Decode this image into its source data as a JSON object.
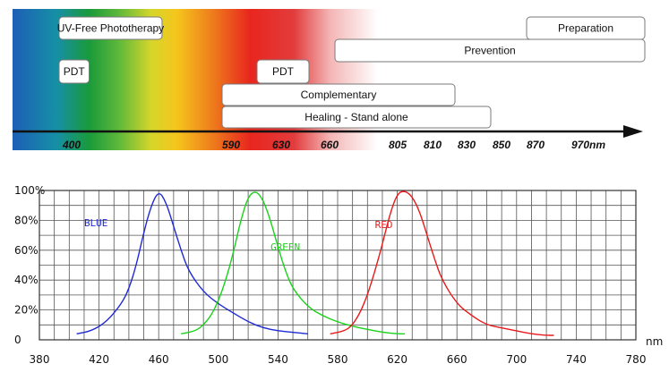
{
  "spectrum_diagram": {
    "wavelength_ticks": [
      "400",
      "590",
      "630",
      "660",
      "805",
      "810",
      "830",
      "850",
      "870",
      "970nm"
    ],
    "bands": [
      {
        "label": "UV-Free Phototherapy",
        "from": 400,
        "to": 520
      },
      {
        "label": "PDT",
        "from": 400,
        "to": 435
      },
      {
        "label": "PDT",
        "from": 630,
        "to": 658
      },
      {
        "label": "Preparation",
        "from": 870,
        "to": 980
      },
      {
        "label": "Prevention",
        "from": 690,
        "to": 980
      },
      {
        "label": "Complementary",
        "from": 590,
        "to": 830
      },
      {
        "label": "Healing - Stand alone",
        "from": 590,
        "to": 850
      }
    ]
  },
  "chart_data": {
    "type": "line",
    "title": "",
    "xlabel": "nm",
    "ylabel": "",
    "xlim": [
      380,
      780
    ],
    "ylim": [
      0,
      100
    ],
    "x_ticks": [
      380,
      420,
      460,
      500,
      540,
      580,
      620,
      660,
      700,
      740,
      780
    ],
    "y_ticks": [
      0,
      20,
      40,
      60,
      80,
      100
    ],
    "y_tick_labels": [
      "0",
      "20%",
      "40%",
      "60%",
      "80%",
      "100%"
    ],
    "grid": true,
    "series": [
      {
        "name": "BLUE",
        "color": "#1f2ad4",
        "x": [
          405,
          415,
          425,
          435,
          440,
          445,
          450,
          455,
          460,
          465,
          470,
          475,
          480,
          490,
          500,
          510,
          520,
          530,
          540,
          550,
          560
        ],
        "y": [
          4,
          6,
          12,
          24,
          34,
          50,
          72,
          90,
          100,
          92,
          76,
          60,
          46,
          32,
          24,
          18,
          12,
          8,
          6,
          5,
          4
        ]
      },
      {
        "name": "GREEN",
        "color": "#19d319",
        "x": [
          475,
          485,
          490,
          495,
          500,
          505,
          510,
          515,
          520,
          525,
          530,
          535,
          540,
          545,
          550,
          560,
          570,
          580,
          590,
          600,
          610,
          620,
          625
        ],
        "y": [
          4,
          6,
          10,
          16,
          26,
          40,
          58,
          80,
          96,
          100,
          94,
          80,
          62,
          46,
          34,
          22,
          16,
          12,
          9,
          7,
          5,
          4,
          4
        ]
      },
      {
        "name": "RED",
        "color": "#e81a1a",
        "x": [
          575,
          585,
          590,
          595,
          600,
          605,
          610,
          615,
          620,
          625,
          630,
          635,
          640,
          645,
          650,
          660,
          670,
          680,
          690,
          700,
          710,
          720,
          725
        ],
        "y": [
          4,
          6,
          10,
          18,
          30,
          46,
          64,
          84,
          98,
          100,
          96,
          86,
          70,
          54,
          40,
          24,
          16,
          10,
          8,
          6,
          4,
          3,
          3
        ]
      }
    ]
  }
}
